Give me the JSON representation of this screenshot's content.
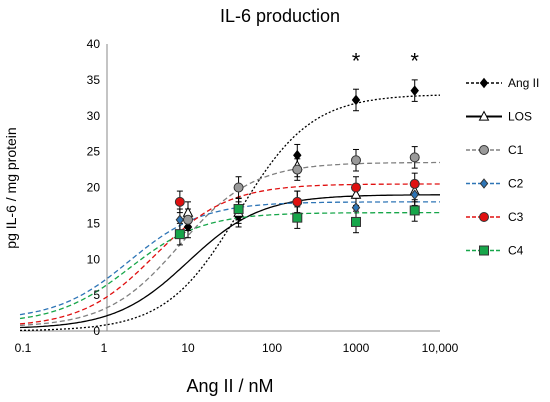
{
  "chart_data": {
    "type": "scatter",
    "title": "IL-6 production",
    "xlabel": "Ang II / nM",
    "ylabel": "pg IL-6 / mg protein",
    "x_scale": "log",
    "xlim": [
      0.1,
      10000
    ],
    "ylim": [
      0,
      40
    ],
    "x_ticks": [
      0.1,
      1,
      10,
      100,
      1000,
      10000
    ],
    "x_tick_labels": [
      "0.1",
      "1",
      "10",
      "100",
      "1000",
      "10,000"
    ],
    "y_ticks": [
      0,
      5,
      10,
      15,
      20,
      25,
      30,
      35,
      40
    ],
    "y_tick_labels": [
      "0",
      "5",
      "10",
      "15",
      "20",
      "25",
      "30",
      "35",
      "40"
    ],
    "grid": false,
    "legend_position": "right",
    "annotations": [
      {
        "text": "*",
        "x": 1000,
        "y": 36
      },
      {
        "text": "*",
        "x": 5000,
        "y": 36
      }
    ],
    "series": [
      {
        "name": "Ang II",
        "color": "#000000",
        "marker": "diamond",
        "fill": "#000000",
        "line": "dotted",
        "curve": "sigmoid",
        "x": [
          10,
          40,
          200,
          1000,
          5000
        ],
        "y": [
          14.5,
          16.0,
          24.5,
          32.2,
          33.5
        ],
        "err": [
          1.5,
          1.5,
          1.5,
          1.5,
          1.5
        ],
        "fit": {
          "bottom": 0,
          "top": 33,
          "ec50": 40,
          "hill": 1.0
        }
      },
      {
        "name": "LOS",
        "color": "#000000",
        "marker": "triangle",
        "fill": "#ffffff",
        "line": "solid",
        "curve": "sigmoid",
        "x": [
          10,
          40,
          200,
          1000,
          5000
        ],
        "y": [
          16.5,
          16.5,
          23.0,
          19.0,
          19.5
        ],
        "err": [
          1.5,
          1.5,
          1.5,
          1.5,
          1.5
        ],
        "fit": {
          "bottom": 0.3,
          "top": 19,
          "ec50": 10,
          "hill": 1.0
        }
      },
      {
        "name": "C1",
        "color": "#808080",
        "marker": "circle",
        "fill": "#9a9a9a",
        "line": "dashed",
        "curve": "sigmoid",
        "x": [
          10,
          40,
          200,
          1000,
          5000
        ],
        "y": [
          15.5,
          20.0,
          22.5,
          23.8,
          24.2
        ],
        "err": [
          1.5,
          1.5,
          1.5,
          1.5,
          1.5
        ],
        "fit": {
          "bottom": 0.5,
          "top": 23.5,
          "ec50": 8,
          "hill": 1.0
        }
      },
      {
        "name": "C2",
        "color": "#2e75b6",
        "marker": "diamond",
        "fill": "#2e75b6",
        "line": "dashed",
        "curve": "sigmoid",
        "x": [
          8,
          40,
          200,
          1000,
          5000
        ],
        "y": [
          15.5,
          17.0,
          18.0,
          17.2,
          19.0
        ],
        "err": [
          1.5,
          1.5,
          1.5,
          1.5,
          1.5
        ],
        "fit": {
          "bottom": 1.5,
          "top": 18,
          "ec50": 2,
          "hill": 1.0
        }
      },
      {
        "name": "C3",
        "color": "#e01010",
        "marker": "circle",
        "fill": "#e01010",
        "line": "dashed",
        "curve": "sigmoid",
        "x": [
          8,
          40,
          200,
          1000,
          5000
        ],
        "y": [
          18.0,
          17.0,
          18.0,
          20.0,
          20.5
        ],
        "err": [
          1.5,
          1.5,
          1.5,
          1.5,
          1.5
        ],
        "fit": {
          "bottom": 0.5,
          "top": 20.5,
          "ec50": 4,
          "hill": 1.0
        }
      },
      {
        "name": "C4",
        "color": "#17a64a",
        "marker": "square",
        "fill": "#17a64a",
        "line": "dashed",
        "curve": "sigmoid",
        "x": [
          8,
          40,
          200,
          1000,
          5000
        ],
        "y": [
          13.5,
          17.0,
          15.8,
          15.2,
          16.8
        ],
        "err": [
          1.5,
          1.5,
          1.5,
          1.5,
          1.5
        ],
        "fit": {
          "bottom": 1,
          "top": 16.5,
          "ec50": 2,
          "hill": 1.0
        }
      }
    ]
  }
}
